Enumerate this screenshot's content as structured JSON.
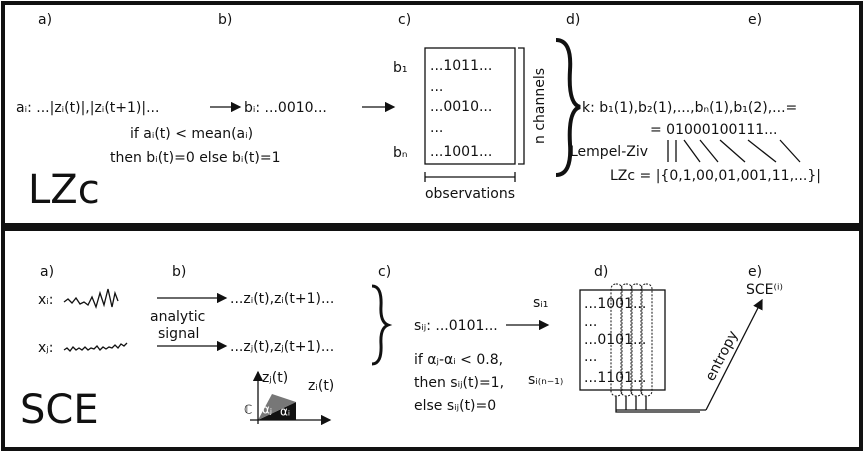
{
  "lzc": {
    "name": "LZc",
    "steps": [
      "a)",
      "b)",
      "c)",
      "d)",
      "e)"
    ],
    "a_text": "aᵢ: ...|zᵢ(t)|,|zᵢ(t+1)|...",
    "b_text": "bᵢ: ...0010...",
    "rule": [
      "if aᵢ(t) < mean(aᵢ)",
      "then bᵢ(t)=0 else bᵢ(t)=1"
    ],
    "rows": [
      "b₁",
      "bₙ"
    ],
    "matrix": [
      "...1011...",
      "...",
      "...0010...",
      "...",
      "...1001..."
    ],
    "channels": "n channels",
    "observations": "observations",
    "k_text": "k: b₁(1),b₂(1),...,bₙ(1),b₁(2),...=",
    "sequence": "= 01000100111...",
    "method": "Lempel-Ziv",
    "formula": "LZc = |{0,1,00,01,001,11,...}|"
  },
  "sce": {
    "name": "SCE",
    "steps": [
      "a)",
      "b)",
      "c)",
      "d)",
      "e)"
    ],
    "xi": "xᵢ:",
    "xj": "xⱼ:",
    "transform": [
      "analytic",
      "signal"
    ],
    "zi": "...zᵢ(t),zᵢ(t+1)...",
    "zj": "...zⱼ(t),zⱼ(t+1)...",
    "s_text": "sᵢⱼ: ...0101...",
    "rule": [
      "if αⱼ-αᵢ < 0.8,",
      "then sᵢⱼ(t)=1,",
      "else sᵢⱼ(t)=0"
    ],
    "inset": [
      "zⱼ(t)",
      "zᵢ(t)",
      "ℂ",
      "αⱼ",
      "αᵢ"
    ],
    "rows": [
      "sᵢ₁",
      "sᵢ₍ₙ₋₁₎"
    ],
    "matrix": [
      "...1001...",
      "...",
      "...0101...",
      "...",
      "...1101..."
    ],
    "entropy": "entropy",
    "result": "SCE⁽ⁱ⁾"
  }
}
